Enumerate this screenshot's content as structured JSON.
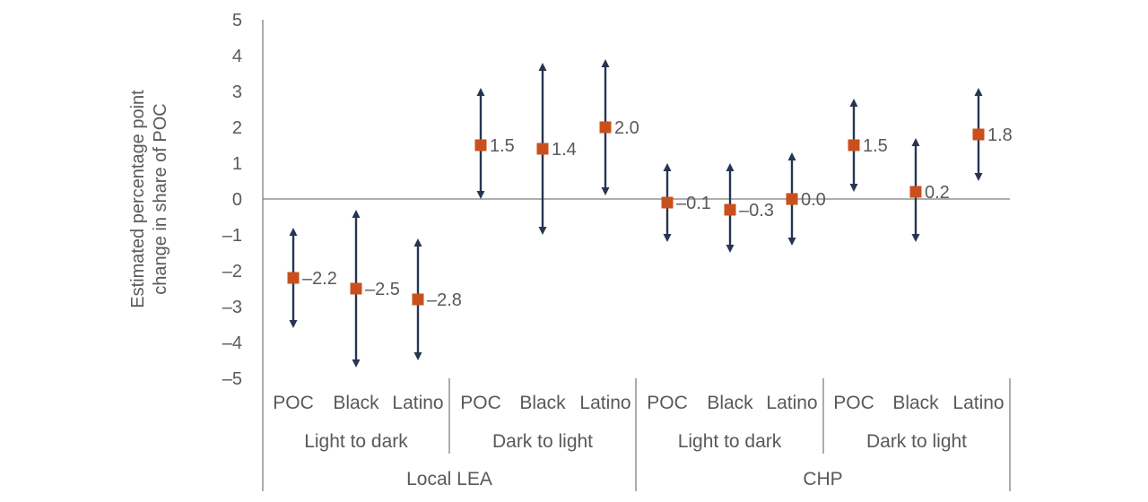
{
  "chart_data": {
    "type": "scatter",
    "ylabel": [
      "Estimated percentage point",
      "change in share of POC"
    ],
    "ylim": [
      -5,
      5
    ],
    "yticks": [
      "5",
      "4",
      "3",
      "2",
      "1",
      "0",
      "–1",
      "–2",
      "–3",
      "–4",
      "–5"
    ],
    "group_labels": [
      "Local LEA",
      "CHP"
    ],
    "subgroup_labels": [
      "Light to dark",
      "Dark to light",
      "Light to dark",
      "Dark to light"
    ],
    "categories": [
      "POC",
      "Black",
      "Latino",
      "POC",
      "Black",
      "Latino",
      "POC",
      "Black",
      "Latino",
      "POC",
      "Black",
      "Latino"
    ],
    "values": [
      -2.2,
      -2.5,
      -2.8,
      1.5,
      1.4,
      2.0,
      -0.1,
      -0.3,
      0.0,
      1.5,
      0.2,
      1.8
    ],
    "value_labels": [
      "–2.2",
      "–2.5",
      "–2.8",
      "1.5",
      "1.4",
      "2.0",
      "–0.1",
      "–0.3",
      "0.0",
      "1.5",
      "0.2",
      "1.8"
    ],
    "ci_low": [
      -3.6,
      -4.7,
      -4.5,
      0.0,
      -1.0,
      0.1,
      -1.2,
      -1.5,
      -1.3,
      0.2,
      -1.2,
      0.5
    ],
    "ci_high": [
      -0.8,
      -0.3,
      -1.1,
      3.1,
      3.8,
      3.9,
      1.0,
      1.0,
      1.3,
      2.8,
      1.7,
      3.1
    ],
    "colors": {
      "point": "#C9501C",
      "errorbar": "#253651",
      "axis": "#7F7F7F",
      "text": "#595959"
    }
  }
}
